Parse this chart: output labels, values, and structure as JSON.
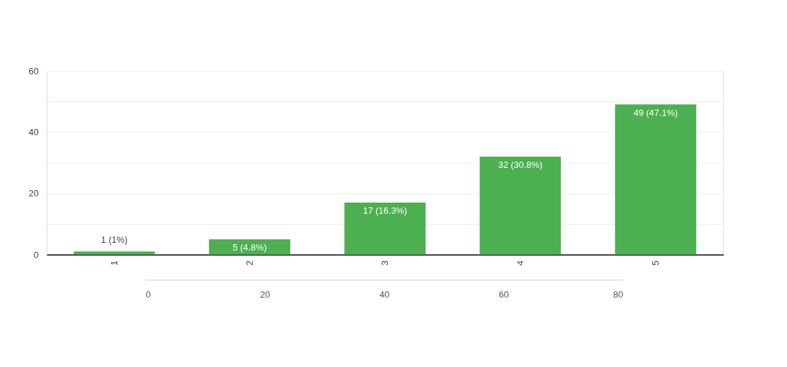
{
  "chart_data": {
    "type": "bar",
    "categories": [
      "1",
      "2",
      "3",
      "4",
      "5"
    ],
    "values": [
      1,
      5,
      17,
      32,
      49
    ],
    "color": "#4caf50",
    "value_labels": [
      "1 (1%)",
      "5 (4.8%)",
      "17 (16.3%)",
      "32 (30.8%)",
      "49 (47.1%)"
    ],
    "ylim": [
      0,
      60
    ],
    "yticks": [
      0,
      {
        "value": 10,
        "label": null
      },
      20,
      {
        "value": 30,
        "label": null
      },
      40,
      {
        "value": 50,
        "label": null
      },
      60
    ],
    "x2lim": [
      0,
      80
    ],
    "x2ticks": [
      0,
      20,
      40,
      60,
      80
    ],
    "grid": "y"
  }
}
